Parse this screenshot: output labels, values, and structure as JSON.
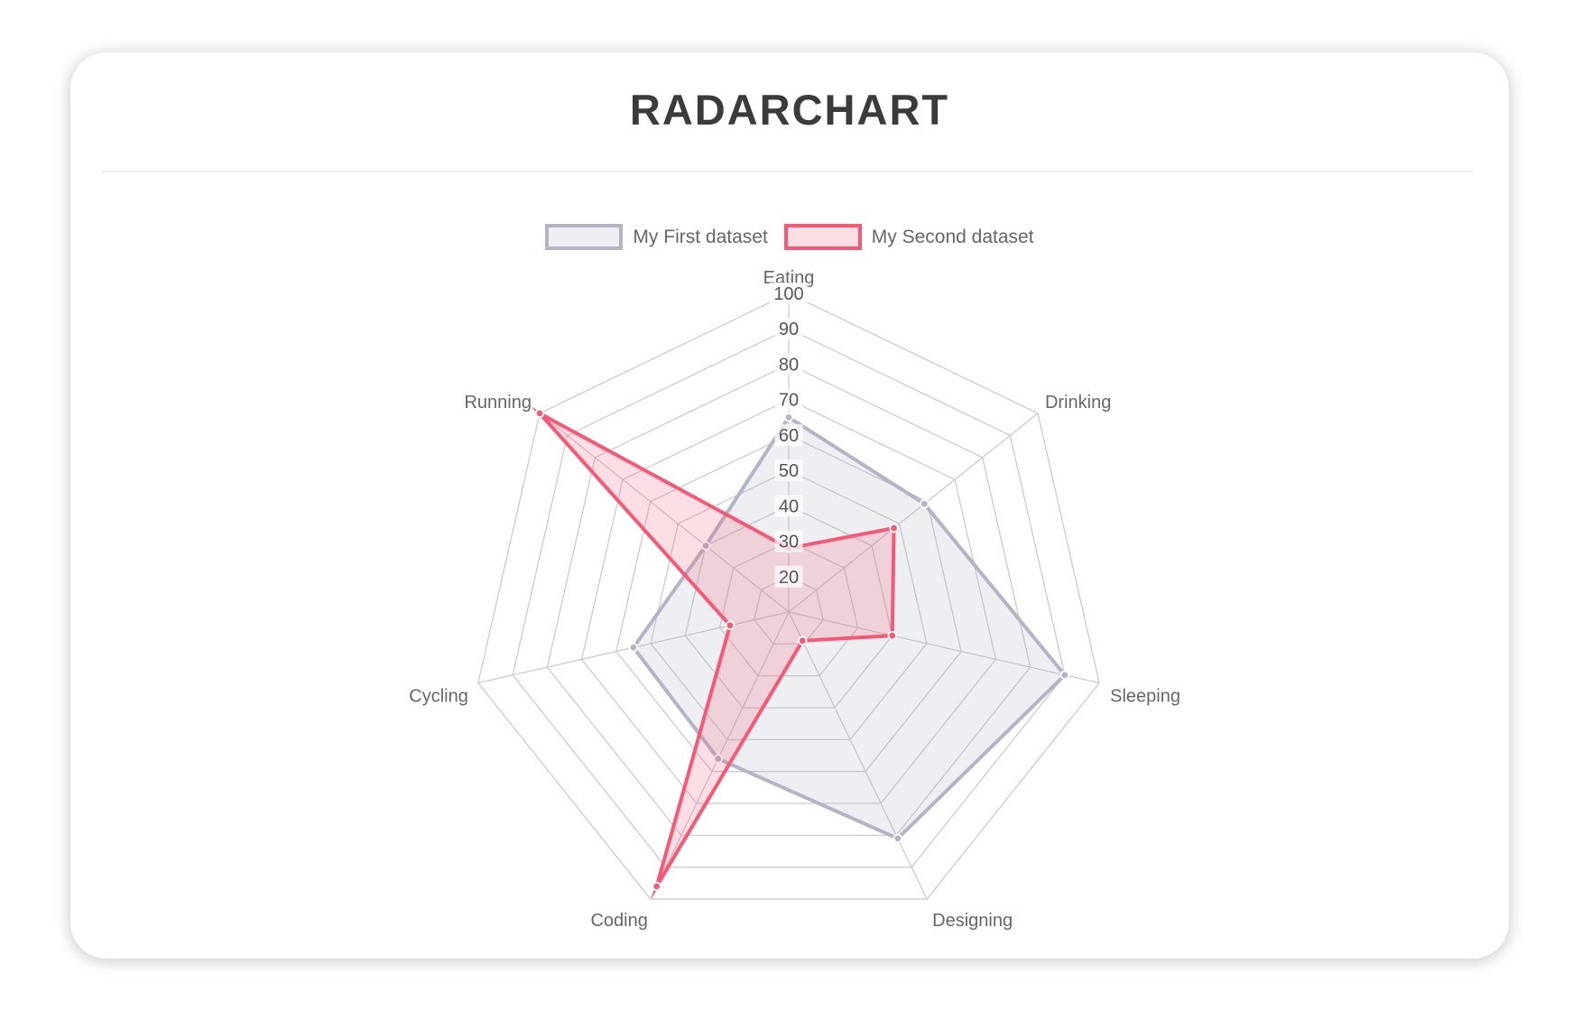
{
  "chart_data": {
    "type": "radar",
    "title": "RADARCHART",
    "categories": [
      "Eating",
      "Drinking",
      "Sleeping",
      "Designing",
      "Coding",
      "Cycling",
      "Running"
    ],
    "series": [
      {
        "name": "My First dataset",
        "values": [
          65,
          59,
          90,
          81,
          56,
          55,
          40
        ],
        "border_color": "#B3B5C6",
        "fill_color": "rgba(179,181,198,0.22)",
        "point_fill": "#B3B5C6",
        "point_border": "#FFFFFF"
      },
      {
        "name": "My Second dataset",
        "values": [
          28,
          48,
          40,
          19,
          96,
          27,
          100
        ],
        "border_color": "#F65876",
        "fill_color": "rgba(246,88,118,0.2)",
        "point_fill": "#F65876",
        "point_border": "#FFFFFF"
      }
    ],
    "scale": {
      "min": 10,
      "max": 100,
      "step": 10,
      "tick_labels": [
        "20",
        "30",
        "40",
        "50",
        "60",
        "70",
        "80",
        "90",
        "100"
      ]
    },
    "grid": true,
    "legend_position": "top",
    "colors": {
      "grid_line": "#CBCBCF",
      "tick_text": "#55555A",
      "axis_label_text": "#666666",
      "tick_backdrop": "rgba(255,255,255,0.72)",
      "title_text": "#3B3B3B",
      "legend_text": "#666666",
      "card_background": "#FFFFFF"
    }
  }
}
